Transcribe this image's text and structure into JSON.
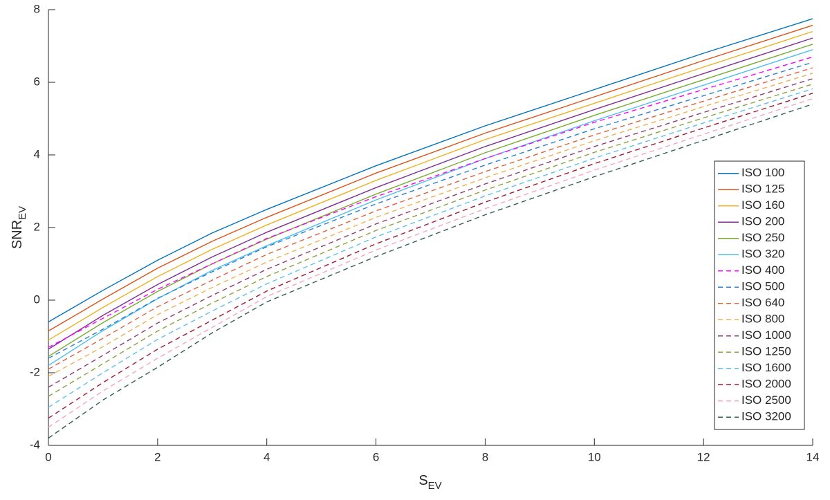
{
  "chart_data": {
    "type": "line",
    "xlabel": "S",
    "xlabel_sub": "EV",
    "ylabel": "SNR",
    "ylabel_sub": "EV",
    "x": [
      0,
      1,
      2,
      3,
      4,
      6,
      8,
      10,
      12,
      14
    ],
    "xlim": [
      0,
      14
    ],
    "xticks": [
      0,
      2,
      4,
      6,
      8,
      10,
      12,
      14
    ],
    "ylim": [
      -4,
      8
    ],
    "yticks": [
      -4,
      -2,
      0,
      2,
      4,
      6,
      8
    ],
    "legend": "right",
    "series": [
      {
        "name": "ISO 100",
        "color": "#0072bd",
        "style": "solid",
        "values": [
          -0.6,
          0.27,
          1.1,
          1.85,
          2.5,
          3.7,
          4.8,
          5.8,
          6.8,
          7.75
        ]
      },
      {
        "name": "ISO 125",
        "color": "#d95319",
        "style": "solid",
        "values": [
          -0.85,
          0.03,
          0.88,
          1.62,
          2.28,
          3.5,
          4.6,
          5.6,
          6.6,
          7.57
        ]
      },
      {
        "name": "ISO 160",
        "color": "#edb120",
        "style": "solid",
        "values": [
          -1.1,
          -0.2,
          0.65,
          1.4,
          2.07,
          3.3,
          4.42,
          5.42,
          6.42,
          7.4
        ]
      },
      {
        "name": "ISO 200",
        "color": "#7e2f8e",
        "style": "solid",
        "values": [
          -1.35,
          -0.42,
          0.43,
          1.19,
          1.87,
          3.1,
          4.23,
          5.25,
          6.24,
          7.22
        ]
      },
      {
        "name": "ISO 250",
        "color": "#77ac30",
        "style": "solid",
        "values": [
          -1.55,
          -0.62,
          0.24,
          1.0,
          1.68,
          2.92,
          4.06,
          5.09,
          6.07,
          7.05
        ]
      },
      {
        "name": "ISO 320",
        "color": "#4dbeee",
        "style": "solid",
        "values": [
          -1.8,
          -0.84,
          0.04,
          0.82,
          1.5,
          2.76,
          3.9,
          4.94,
          5.92,
          6.9
        ]
      },
      {
        "name": "ISO 400",
        "color": "#ff00ff",
        "style": "dashed",
        "values": [
          -1.3,
          -0.5,
          0.3,
          1.0,
          1.7,
          2.85,
          3.9,
          4.9,
          5.8,
          6.7
        ]
      },
      {
        "name": "ISO 500",
        "color": "#2a7fd0",
        "style": "dashed",
        "values": [
          -1.6,
          -0.8,
          0.05,
          0.78,
          1.47,
          2.65,
          3.72,
          4.72,
          5.63,
          6.55
        ]
      },
      {
        "name": "ISO 640",
        "color": "#e0603a",
        "style": "dashed",
        "values": [
          -1.9,
          -1.05,
          -0.18,
          0.55,
          1.26,
          2.46,
          3.54,
          4.55,
          5.48,
          6.4
        ]
      },
      {
        "name": "ISO 800",
        "color": "#f0b050",
        "style": "dashed",
        "values": [
          -2.1,
          -1.28,
          -0.4,
          0.35,
          1.05,
          2.28,
          3.37,
          4.39,
          5.33,
          6.25
        ]
      },
      {
        "name": "ISO 1000",
        "color": "#8e3a6e",
        "style": "dashed",
        "values": [
          -2.4,
          -1.52,
          -0.63,
          0.13,
          0.85,
          2.1,
          3.2,
          4.23,
          5.17,
          6.1
        ]
      },
      {
        "name": "ISO 1250",
        "color": "#8aa040",
        "style": "dashed",
        "values": [
          -2.65,
          -1.75,
          -0.85,
          -0.08,
          0.65,
          1.92,
          3.03,
          4.07,
          5.02,
          5.95
        ]
      },
      {
        "name": "ISO 1600",
        "color": "#5ec0ee",
        "style": "dashed",
        "values": [
          -2.95,
          -2.0,
          -1.08,
          -0.3,
          0.45,
          1.74,
          2.87,
          3.91,
          4.88,
          5.82
        ]
      },
      {
        "name": "ISO 2000",
        "color": "#a2142f",
        "style": "dashed",
        "values": [
          -3.25,
          -2.27,
          -1.35,
          -0.55,
          0.25,
          1.55,
          2.7,
          3.76,
          4.74,
          5.7
        ]
      },
      {
        "name": "ISO 2500",
        "color": "#f4a6c0",
        "style": "dashed",
        "values": [
          -3.5,
          -2.5,
          -1.6,
          -0.75,
          0.1,
          1.38,
          2.52,
          3.58,
          4.57,
          5.55
        ]
      },
      {
        "name": "ISO 3200",
        "color": "#2f5f4f",
        "style": "dashed",
        "values": [
          -3.8,
          -2.75,
          -1.85,
          -0.9,
          -0.05,
          1.2,
          2.35,
          3.4,
          4.4,
          5.4
        ]
      }
    ]
  }
}
